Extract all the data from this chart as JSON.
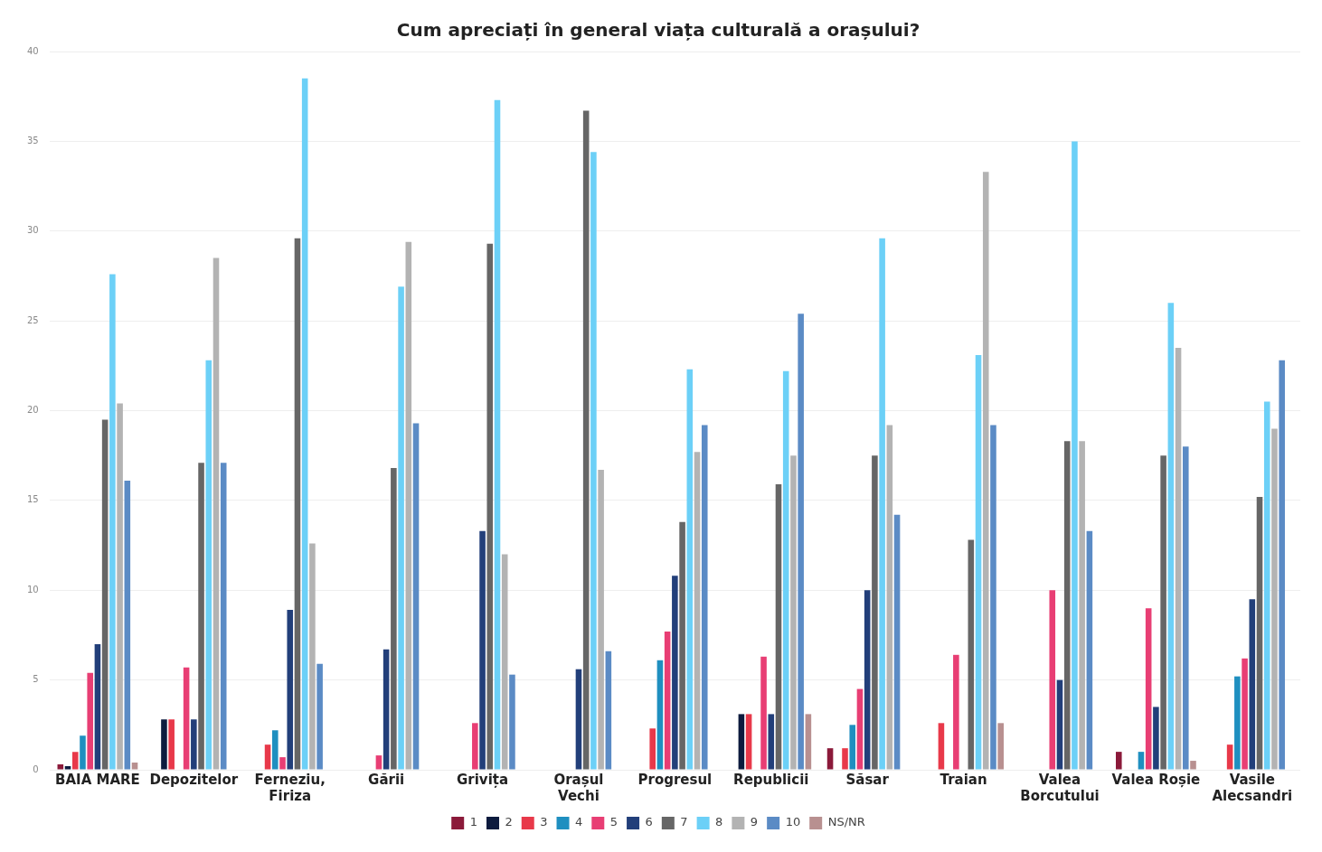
{
  "chart_data": {
    "type": "bar",
    "title": "Cum apreciați în general viața culturală a orașului?",
    "categories": [
      "BAIA MARE",
      "Depozitelor",
      "Ferneziu, Firiza",
      "Gării",
      "Grivița",
      "Orașul Vechi",
      "Progresul",
      "Republicii",
      "Săsar",
      "Traian",
      "Valea Borcutului",
      "Valea Roșie",
      "Vasile Alecsandri"
    ],
    "series": [
      {
        "name": "1",
        "color": "#8b1a3a",
        "values": [
          0.3,
          null,
          null,
          null,
          null,
          null,
          null,
          null,
          1.2,
          null,
          null,
          1.0,
          null
        ]
      },
      {
        "name": "2",
        "color": "#0d1b3e",
        "values": [
          0.2,
          2.8,
          null,
          null,
          null,
          null,
          null,
          3.1,
          null,
          null,
          null,
          null,
          null
        ]
      },
      {
        "name": "3",
        "color": "#e8394a",
        "values": [
          1.0,
          2.8,
          1.4,
          null,
          null,
          null,
          2.3,
          3.1,
          1.2,
          2.6,
          null,
          null,
          1.4
        ]
      },
      {
        "name": "4",
        "color": "#1f8fc0",
        "values": [
          1.9,
          null,
          2.2,
          null,
          null,
          null,
          6.1,
          null,
          2.5,
          null,
          null,
          1.0,
          5.2
        ]
      },
      {
        "name": "5",
        "color": "#e83e74",
        "values": [
          5.4,
          5.7,
          0.7,
          0.8,
          2.6,
          null,
          7.7,
          6.3,
          4.5,
          6.4,
          10.0,
          9.0,
          6.2
        ]
      },
      {
        "name": "6",
        "color": "#223f7a",
        "values": [
          7.0,
          2.8,
          8.9,
          6.7,
          13.3,
          5.6,
          10.8,
          3.1,
          10.0,
          null,
          5.0,
          3.5,
          9.5
        ]
      },
      {
        "name": "7",
        "color": "#666666",
        "values": [
          19.5,
          17.1,
          29.6,
          16.8,
          29.3,
          36.7,
          13.8,
          15.9,
          17.5,
          12.8,
          18.3,
          17.5,
          15.2
        ]
      },
      {
        "name": "8",
        "color": "#6cd0f7",
        "values": [
          27.6,
          22.8,
          38.5,
          26.9,
          37.3,
          34.4,
          22.3,
          22.2,
          29.6,
          23.1,
          35.0,
          26.0,
          20.5
        ]
      },
      {
        "name": "9",
        "color": "#b3b3b3",
        "values": [
          20.4,
          28.5,
          12.6,
          29.4,
          12.0,
          16.7,
          17.7,
          17.5,
          19.2,
          33.3,
          18.3,
          23.5,
          19.0
        ]
      },
      {
        "name": "10",
        "color": "#5b8bc5",
        "values": [
          16.1,
          17.1,
          5.9,
          19.3,
          5.3,
          6.6,
          19.2,
          25.4,
          14.2,
          19.2,
          13.3,
          18.0,
          22.8
        ]
      },
      {
        "name": "NS/NR",
        "color": "#b89090",
        "values": [
          0.4,
          null,
          null,
          null,
          null,
          null,
          null,
          3.1,
          null,
          2.6,
          null,
          0.5,
          null
        ]
      }
    ],
    "ylim": [
      0,
      40
    ],
    "yticks": [
      0,
      5,
      10,
      15,
      20,
      25,
      30,
      35,
      40
    ],
    "grid": "y",
    "legend": "bottom"
  }
}
